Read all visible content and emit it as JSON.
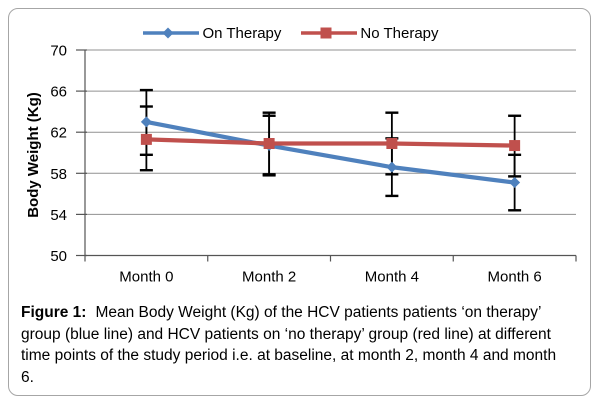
{
  "chart_data": {
    "type": "line",
    "categories": [
      "Month 0",
      "Month 2",
      "Month 4",
      "Month 6"
    ],
    "series": [
      {
        "name": "On Therapy",
        "color": "#4F81BD",
        "marker": "diamond",
        "values": [
          63.0,
          60.7,
          58.6,
          57.1
        ],
        "error_upper": [
          66.1,
          63.6,
          61.4,
          59.8
        ],
        "error_lower": [
          59.8,
          57.8,
          55.8,
          54.4
        ]
      },
      {
        "name": "No Therapy",
        "color": "#C0504D",
        "marker": "square",
        "values": [
          61.3,
          60.9,
          60.9,
          60.7
        ],
        "error_upper": [
          64.5,
          63.9,
          63.9,
          63.6
        ],
        "error_lower": [
          58.3,
          57.9,
          57.9,
          57.7
        ]
      }
    ],
    "xlabel": "",
    "ylabel": "Body Weight (Kg)",
    "ylim": [
      50,
      70
    ],
    "yticks": [
      50,
      54,
      58,
      62,
      66,
      70
    ],
    "grid": true,
    "legend_position": "top",
    "styles": {
      "gridline_color": "#919191",
      "axis_color": "#555555",
      "error_bar_color": "#000000",
      "frame_border_color": "#A6A6A6",
      "text_color": "#000000"
    }
  },
  "figure": {
    "caption": {
      "label": "Figure 1:",
      "line1": "Mean Body Weight (Kg) of the HCV patients patients ‘on therapy’",
      "line2": "group (blue line) and HCV patients on ‘no therapy’ group (red line) at different",
      "line3": "time points of the study period i.e. at baseline, at month 2, month 4 and month",
      "line4": "6."
    }
  }
}
